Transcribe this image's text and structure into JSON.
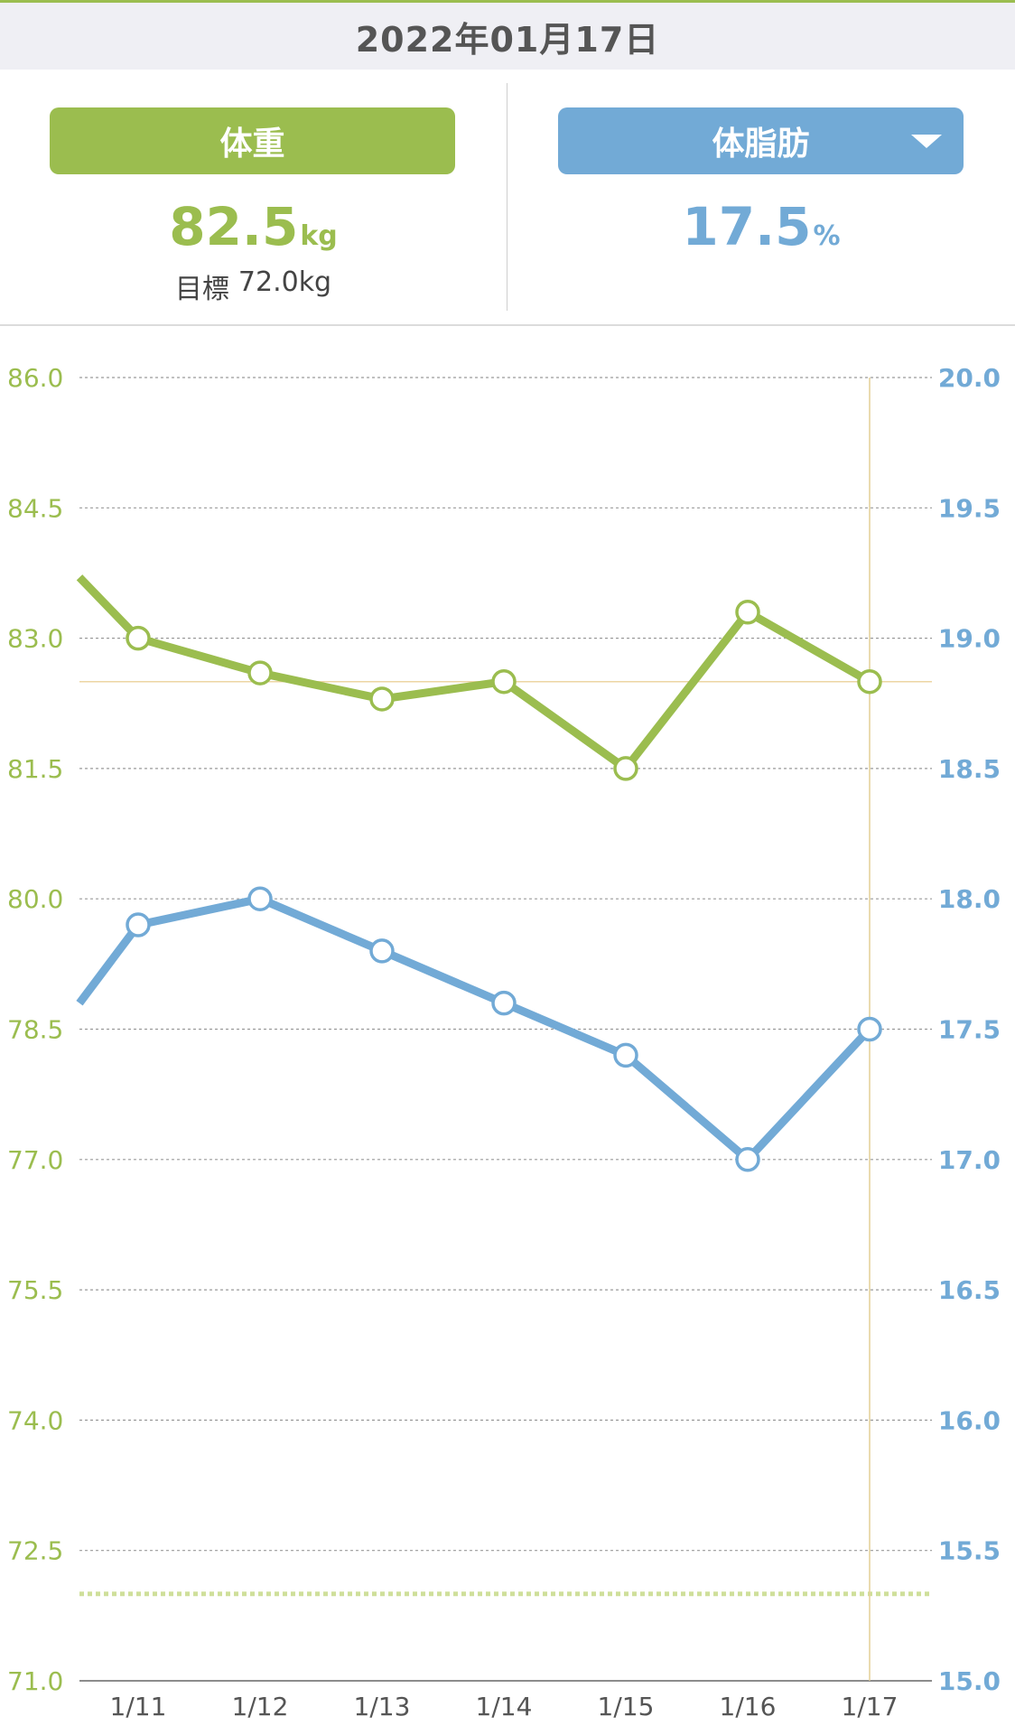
{
  "header": {
    "date": "2022年01月17日"
  },
  "weight_panel": {
    "label": "体重",
    "value": "82.5",
    "unit": "kg",
    "goal_label": "目標",
    "goal_value": "72.0kg"
  },
  "fat_panel": {
    "label": "体脂肪",
    "value": "17.5",
    "unit": "%",
    "dropdown_icon": "triangle-down-icon"
  },
  "colors": {
    "weight": "#9bbd4f",
    "fat": "#72aad6",
    "header_bg": "#efeff4",
    "selected_line": "#e8d39a"
  },
  "chart_data": {
    "type": "line",
    "categories": [
      "1/11",
      "1/12",
      "1/13",
      "1/14",
      "1/15",
      "1/16",
      "1/17"
    ],
    "series": [
      {
        "name": "体重",
        "axis": "left",
        "color": "#9bbd4f",
        "values": [
          83.0,
          82.6,
          82.3,
          82.5,
          81.5,
          83.3,
          82.5
        ],
        "entering_value": 83.7
      },
      {
        "name": "体脂肪",
        "axis": "right",
        "color": "#72aad6",
        "values": [
          17.9,
          18.0,
          17.8,
          17.6,
          17.4,
          17.0,
          17.5
        ],
        "entering_value": 17.6
      }
    ],
    "y_left": {
      "min": 71.0,
      "max": 86.0,
      "ticks": [
        "86.0",
        "84.5",
        "83.0",
        "81.5",
        "80.0",
        "78.5",
        "77.0",
        "75.5",
        "74.0",
        "72.5",
        "71.0"
      ]
    },
    "y_right": {
      "min": 15.0,
      "max": 20.0,
      "ticks": [
        "20.0",
        "19.5",
        "19.0",
        "18.5",
        "18.0",
        "17.5",
        "17.0",
        "16.5",
        "16.0",
        "15.5",
        "15.0"
      ]
    },
    "goal_line": 72.0,
    "current_value_line": 82.5,
    "selected_category": "1/17",
    "grid": true
  }
}
